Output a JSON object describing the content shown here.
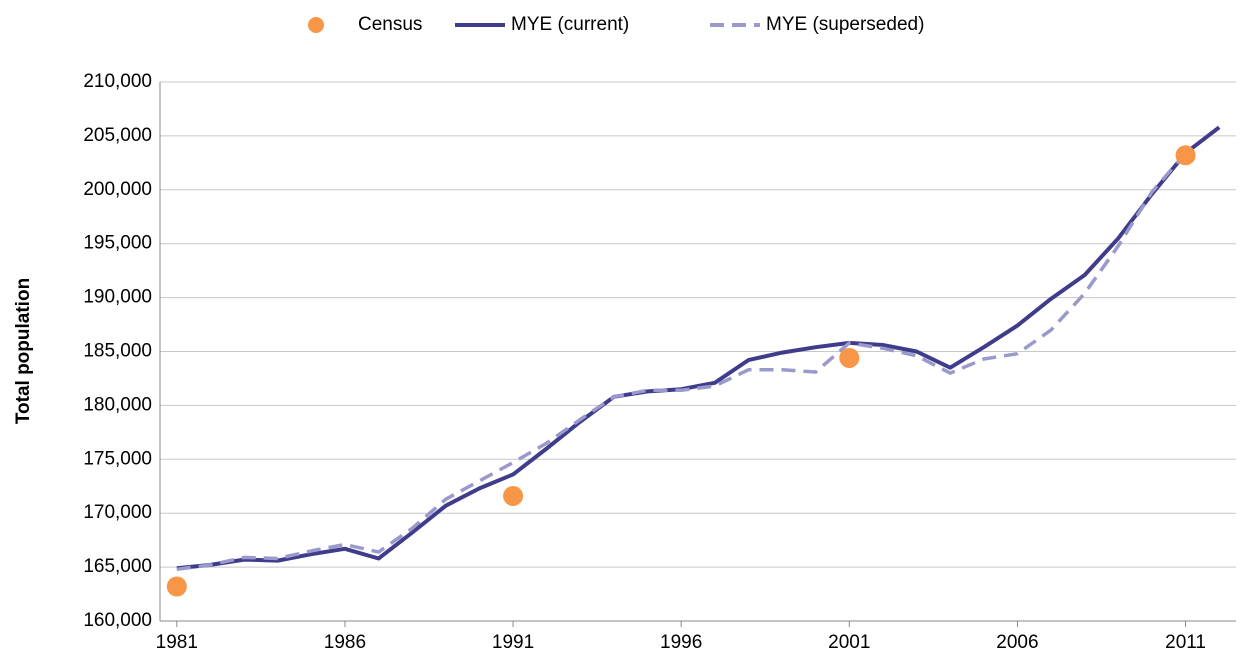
{
  "chart_data": {
    "type": "line",
    "y_label": "Total population",
    "xlim": [
      1980.5,
      2012.5
    ],
    "xticks": [
      1981,
      1986,
      1991,
      1996,
      2001,
      2006,
      2011
    ],
    "ylim": [
      160000,
      210000
    ],
    "yticks": [
      {
        "value": 160000,
        "label": "160,000"
      },
      {
        "value": 165000,
        "label": "165,000"
      },
      {
        "value": 170000,
        "label": "170,000"
      },
      {
        "value": 175000,
        "label": "175,000"
      },
      {
        "value": 180000,
        "label": "180,000"
      },
      {
        "value": 185000,
        "label": "185,000"
      },
      {
        "value": 190000,
        "label": "190,000"
      },
      {
        "value": 195000,
        "label": "195,000"
      },
      {
        "value": 200000,
        "label": "200,000"
      },
      {
        "value": 205000,
        "label": "205,000"
      },
      {
        "value": 210000,
        "label": "210,000"
      }
    ],
    "grid": true,
    "legend": "top",
    "series": [
      {
        "name": "Census",
        "color": "#f79646",
        "style": "markers",
        "x": [
          1981,
          1991,
          2001,
          2011
        ],
        "values": [
          163200,
          171600,
          184400,
          203200
        ]
      },
      {
        "name": "MYE (current)",
        "color": "#403c8c",
        "style": "solid",
        "x": [
          1981,
          1982,
          1983,
          1984,
          1985,
          1986,
          1987,
          1988,
          1989,
          1990,
          1991,
          1992,
          1993,
          1994,
          1995,
          1996,
          1997,
          1998,
          1999,
          2000,
          2001,
          2002,
          2003,
          2004,
          2005,
          2006,
          2007,
          2008,
          2009,
          2010,
          2011,
          2012
        ],
        "values": [
          164900,
          165200,
          165700,
          165600,
          166200,
          166700,
          165800,
          168200,
          170700,
          172300,
          173600,
          176000,
          178500,
          180800,
          181300,
          181500,
          182100,
          184200,
          184900,
          185400,
          185800,
          185600,
          185000,
          183500,
          185400,
          187400,
          189900,
          192100,
          195500,
          199600,
          203400,
          205800
        ]
      },
      {
        "name": "MYE (superseded)",
        "color": "#9a99cc",
        "style": "dashed",
        "x": [
          1981,
          1982,
          1983,
          1984,
          1985,
          1986,
          1987,
          1988,
          1989,
          1990,
          1991,
          1992,
          1993,
          1994,
          1995,
          1996,
          1997,
          1998,
          1999,
          2000,
          2001,
          2002,
          2003,
          2004,
          2005,
          2006,
          2007,
          2008,
          2009,
          2010,
          2011
        ],
        "values": [
          164800,
          165200,
          165900,
          165800,
          166500,
          167100,
          166400,
          168600,
          171300,
          173000,
          174700,
          176500,
          178700,
          180800,
          181400,
          181400,
          181800,
          183300,
          183300,
          183100,
          185800,
          185300,
          184600,
          183000,
          184300,
          184800,
          187000,
          190400,
          194800,
          199800,
          203400
        ]
      }
    ]
  }
}
